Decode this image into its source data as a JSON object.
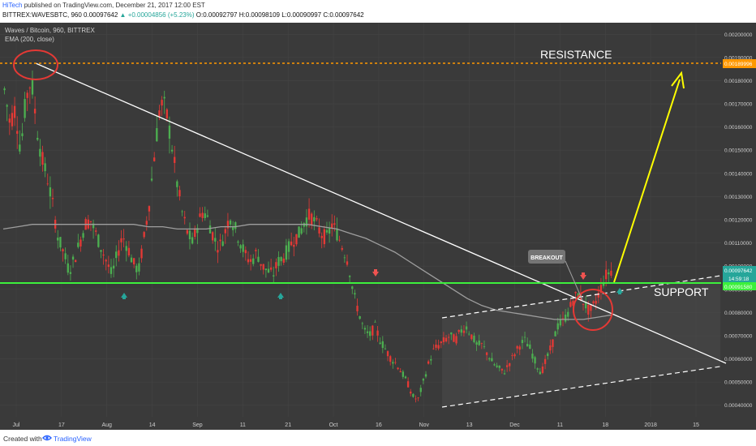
{
  "header": {
    "author": "HiTech",
    "published": "published on TradingView.com, December 21, 2017 12:00 EST",
    "symbol_line": "BITTREX:WAVESBTC, 960",
    "close_value": "0.00097642",
    "change": "▲ +0.00004856 (+5.23%)",
    "ohlc": "O:0.00092797 H:0.00098109 L:0.00090997 C:0.00097642",
    "pair_title": "Waves / Bitcoin, 960, BITTREX",
    "indicator": "EMA (200, close)"
  },
  "footer": {
    "created_with": "Created with",
    "brand": "TradingView"
  },
  "chart_data": {
    "type": "candlestick",
    "title": "Waves / Bitcoin, 960, BITTREX",
    "ylim": [
      0.00035,
      0.00205
    ],
    "y_ticks": [
      "0.00040000",
      "0.00050000",
      "0.00060000",
      "0.00070000",
      "0.00080000",
      "0.00090000",
      "0.00100000",
      "0.00110000",
      "0.00120000",
      "0.00130000",
      "0.00140000",
      "0.00150000",
      "0.00160000",
      "0.00170000",
      "0.00180000",
      "0.00190000",
      "0.00200000"
    ],
    "x_ticks": [
      "Jul",
      "17",
      "Aug",
      "14",
      "Sep",
      "11",
      "21",
      "Oct",
      "16",
      "Nov",
      "13",
      "Dec",
      "11",
      "18",
      "2018",
      "15"
    ],
    "price_labels": {
      "resistance": "0.00189996",
      "current": "0.00097642",
      "countdown": "14:59:18",
      "support": "0.00091580"
    },
    "levels": {
      "resistance": 0.0019,
      "support": 0.000916
    },
    "annotations": {
      "resistance": "RESISTANCE",
      "support": "SUPPORT",
      "breakout": "BREAKOUT"
    },
    "series_price": [
      0.00176,
      0.00162,
      0.00168,
      0.0015,
      0.00172,
      0.00181,
      0.0016,
      0.00146,
      0.00138,
      0.00126,
      0.00112,
      0.00106,
      0.00098,
      0.00103,
      0.0011,
      0.00118,
      0.0012,
      0.00114,
      0.00108,
      0.00102,
      0.00096,
      0.00105,
      0.00113,
      0.00108,
      0.00101,
      0.00098,
      0.00112,
      0.00128,
      0.0015,
      0.0017,
      0.00168,
      0.00155,
      0.00138,
      0.00124,
      0.00115,
      0.0011,
      0.00118,
      0.00124,
      0.0012,
      0.00112,
      0.00108,
      0.00114,
      0.00122,
      0.00116,
      0.0011,
      0.00104,
      0.00102,
      0.00106,
      0.001,
      0.00098,
      0.00096,
      0.00102,
      0.00104,
      0.00108,
      0.00112,
      0.00114,
      0.0012,
      0.00122,
      0.00118,
      0.00114,
      0.00112,
      0.00118,
      0.00114,
      0.00108,
      0.00102,
      0.00088,
      0.0008,
      0.00072,
      0.0007,
      0.00074,
      0.00068,
      0.00064,
      0.0006,
      0.00058,
      0.00054,
      0.0005,
      0.00044,
      0.00042,
      0.0005,
      0.00058,
      0.00064,
      0.00066,
      0.00068,
      0.0007,
      0.00068,
      0.00072,
      0.00074,
      0.0007,
      0.00066,
      0.00066,
      0.00062,
      0.00058,
      0.00056,
      0.00054,
      0.00058,
      0.00062,
      0.00066,
      0.00068,
      0.00064,
      0.00058,
      0.00054,
      0.0006,
      0.00066,
      0.00074,
      0.00076,
      0.0008,
      0.00086,
      0.00088,
      0.00084,
      0.0008,
      0.00084,
      0.0009,
      0.00096,
      0.00098
    ],
    "series_ema": [
      0.00116,
      0.00117,
      0.00118,
      0.00118,
      0.00118,
      0.00118,
      0.00118,
      0.00118,
      0.00118,
      0.00118,
      0.00117,
      0.00117,
      0.00116,
      0.00116,
      0.00116,
      0.00117,
      0.00117,
      0.00118,
      0.00118,
      0.00118,
      0.00118,
      0.00118,
      0.00117,
      0.00116,
      0.00114,
      0.00112,
      0.00109,
      0.00106,
      0.00102,
      0.00098,
      0.00094,
      0.0009,
      0.00086,
      0.00083,
      0.00081,
      0.0008,
      0.00079,
      0.00078,
      0.00077,
      0.00077,
      0.00077,
      0.00078,
      0.00079
    ]
  }
}
